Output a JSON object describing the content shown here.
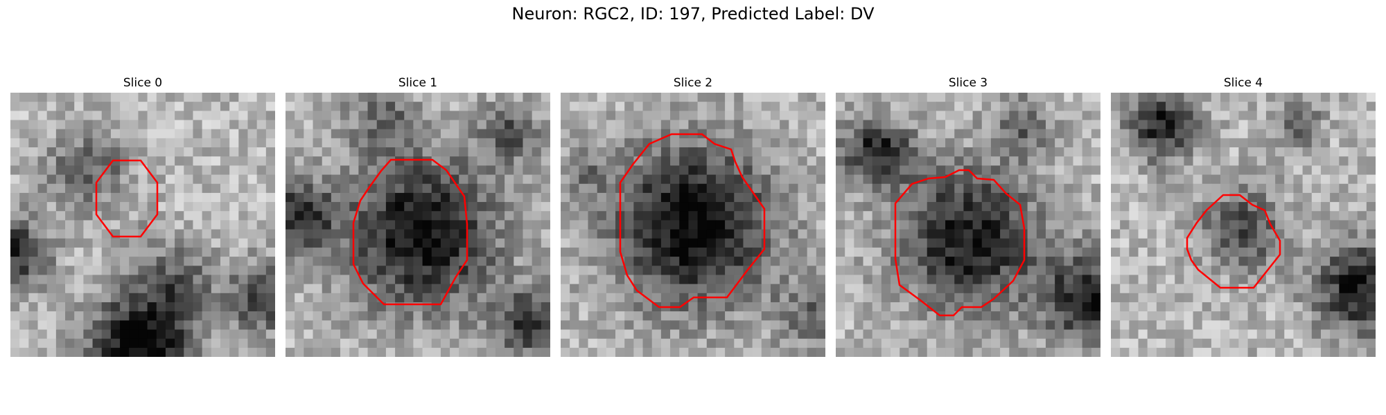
{
  "figure": {
    "title": "Neuron: RGC2, ID: 197, Predicted Label: DV"
  },
  "panels": [
    {
      "title": "Slice 0"
    },
    {
      "title": "Slice 1"
    },
    {
      "title": "Slice 2"
    },
    {
      "title": "Slice 3"
    },
    {
      "title": "Slice 4"
    }
  ],
  "colors": {
    "contour": "#ff0000",
    "background": "#ffffff"
  }
}
